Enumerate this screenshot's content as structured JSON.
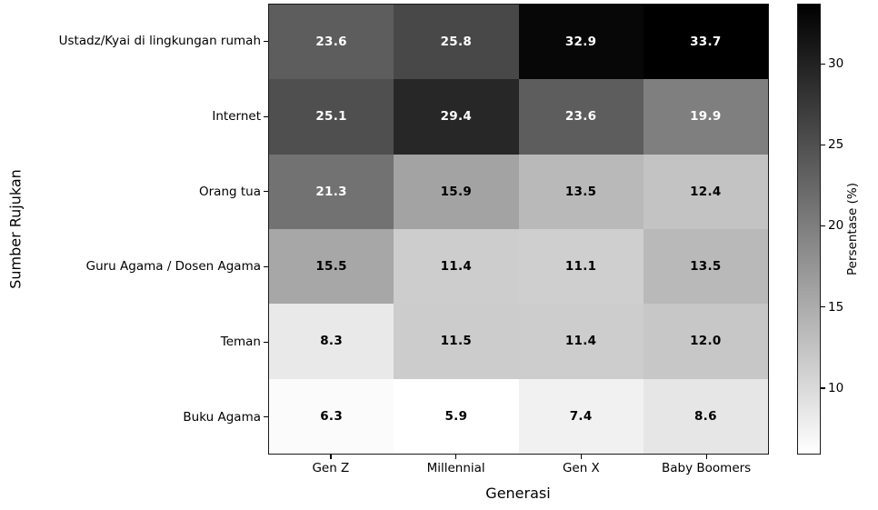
{
  "chart_data": {
    "type": "heatmap",
    "xlabel": "Generasi",
    "ylabel": "Sumber Rujukan",
    "x_categories": [
      "Gen Z",
      "Millennial",
      "Gen X",
      "Baby Boomers"
    ],
    "y_categories": [
      "Ustadz/Kyai di lingkungan rumah",
      "Internet",
      "Orang tua",
      "Guru Agama / Dosen Agama",
      "Teman",
      "Buku Agama"
    ],
    "values": [
      [
        23.6,
        25.8,
        32.9,
        33.7
      ],
      [
        25.1,
        29.4,
        23.6,
        19.9
      ],
      [
        21.3,
        15.9,
        13.5,
        12.4
      ],
      [
        15.5,
        11.4,
        11.1,
        13.5
      ],
      [
        8.3,
        11.5,
        11.4,
        12.0
      ],
      [
        6.3,
        5.9,
        7.4,
        8.6
      ]
    ],
    "value_decimals": 1,
    "colorbar": {
      "label": "Persentase (%)",
      "ticks": [
        10,
        15,
        20,
        25,
        30
      ],
      "vmin": 5.9,
      "vmax": 33.7,
      "colormap": "gray_r",
      "color_low": "#ffffff",
      "color_high": "#000000"
    },
    "grid": false,
    "legend": "none"
  }
}
